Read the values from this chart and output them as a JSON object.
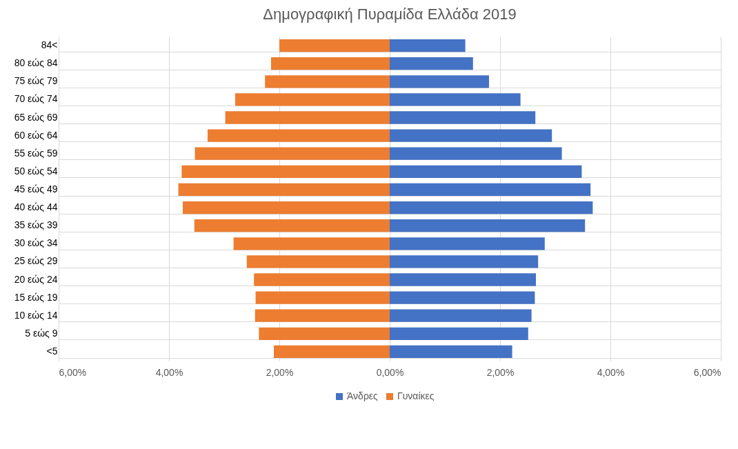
{
  "chart_data": {
    "type": "bar",
    "title": "Δημογραφική Πυραμίδα Ελλάδα 2019",
    "orientation": "horizontal",
    "stacked": true,
    "categories": [
      "84<",
      "80 εώς 84",
      "75 εώς 79",
      "70 εώς 74",
      "65 εώς 69",
      "60 εώς 64",
      "55 εώς 59",
      "50 εώς 54",
      "45 εώς 49",
      "40 εώς 44",
      "35 εώς 39",
      "30 εώς 34",
      "25 εώς 29",
      "20 εώς 24",
      "15 εώς 19",
      "10 εώς 14",
      "5 εώς 9",
      "<5"
    ],
    "series": [
      {
        "name": "Άνδρες",
        "color": "#4472c4",
        "values": [
          1.37,
          1.51,
          1.8,
          2.37,
          2.64,
          2.94,
          3.12,
          3.48,
          3.64,
          3.68,
          3.54,
          2.81,
          2.69,
          2.65,
          2.63,
          2.57,
          2.51,
          2.22
        ]
      },
      {
        "name": "Γυναίκες",
        "color": "#ed7d31",
        "values": [
          -2.0,
          -2.15,
          -2.26,
          -2.8,
          -2.98,
          -3.3,
          -3.53,
          -3.77,
          -3.83,
          -3.75,
          -3.54,
          -2.83,
          -2.59,
          -2.46,
          -2.43,
          -2.44,
          -2.37,
          -2.1
        ]
      }
    ],
    "xlim": [
      -6,
      6
    ],
    "xticks": [
      {
        "value": -6,
        "label": "6,00%"
      },
      {
        "value": -4,
        "label": "4,00%"
      },
      {
        "value": -2,
        "label": "2,00%"
      },
      {
        "value": 0,
        "label": "0,00%"
      },
      {
        "value": 2,
        "label": "2,00%"
      },
      {
        "value": 4,
        "label": "4,00%"
      },
      {
        "value": 6,
        "label": "6,00%"
      }
    ],
    "grid": true,
    "legend": "bottom"
  }
}
